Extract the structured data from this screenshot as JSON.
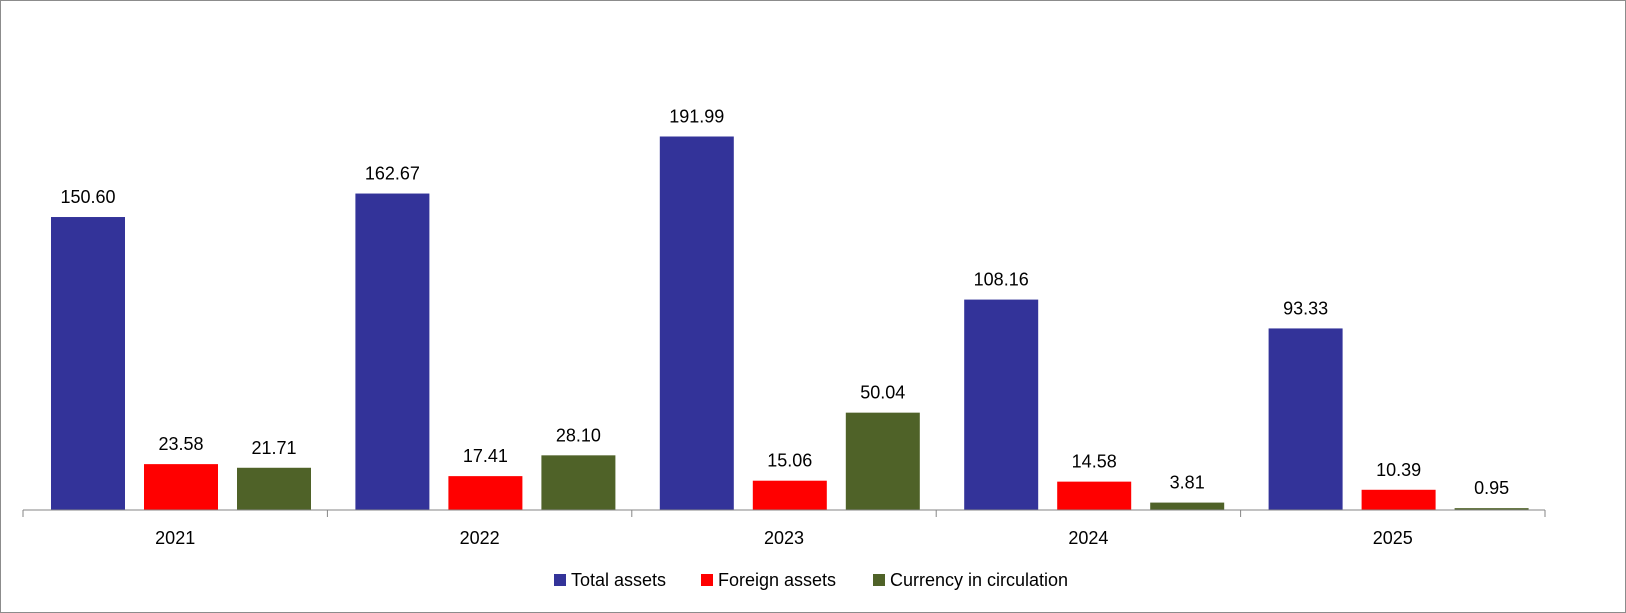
{
  "chart_data": {
    "type": "bar",
    "title": "",
    "xlabel": "",
    "ylabel": "",
    "ylim": [
      0,
      200
    ],
    "grid": false,
    "legend_position": "bottom",
    "categories": [
      "2021",
      "2022",
      "2023",
      "2024",
      "2025"
    ],
    "series": [
      {
        "name": "Total assets",
        "color": "#333399",
        "values": [
          150.6,
          162.67,
          191.99,
          108.16,
          93.33
        ],
        "labels": [
          "150.60",
          "162.67",
          "191.99",
          "108.16",
          "93.33"
        ]
      },
      {
        "name": "Foreign assets",
        "color": "#FF0000",
        "values": [
          23.58,
          17.41,
          15.06,
          14.58,
          10.39
        ],
        "labels": [
          "23.58",
          "17.41",
          "15.06",
          "14.58",
          "10.39"
        ]
      },
      {
        "name": "Currency in circulation",
        "color": "#4F6228",
        "values": [
          21.71,
          28.1,
          50.04,
          3.81,
          0.95
        ],
        "labels": [
          "21.71",
          "28.10",
          "50.04",
          "3.81",
          "0.95"
        ]
      }
    ]
  }
}
